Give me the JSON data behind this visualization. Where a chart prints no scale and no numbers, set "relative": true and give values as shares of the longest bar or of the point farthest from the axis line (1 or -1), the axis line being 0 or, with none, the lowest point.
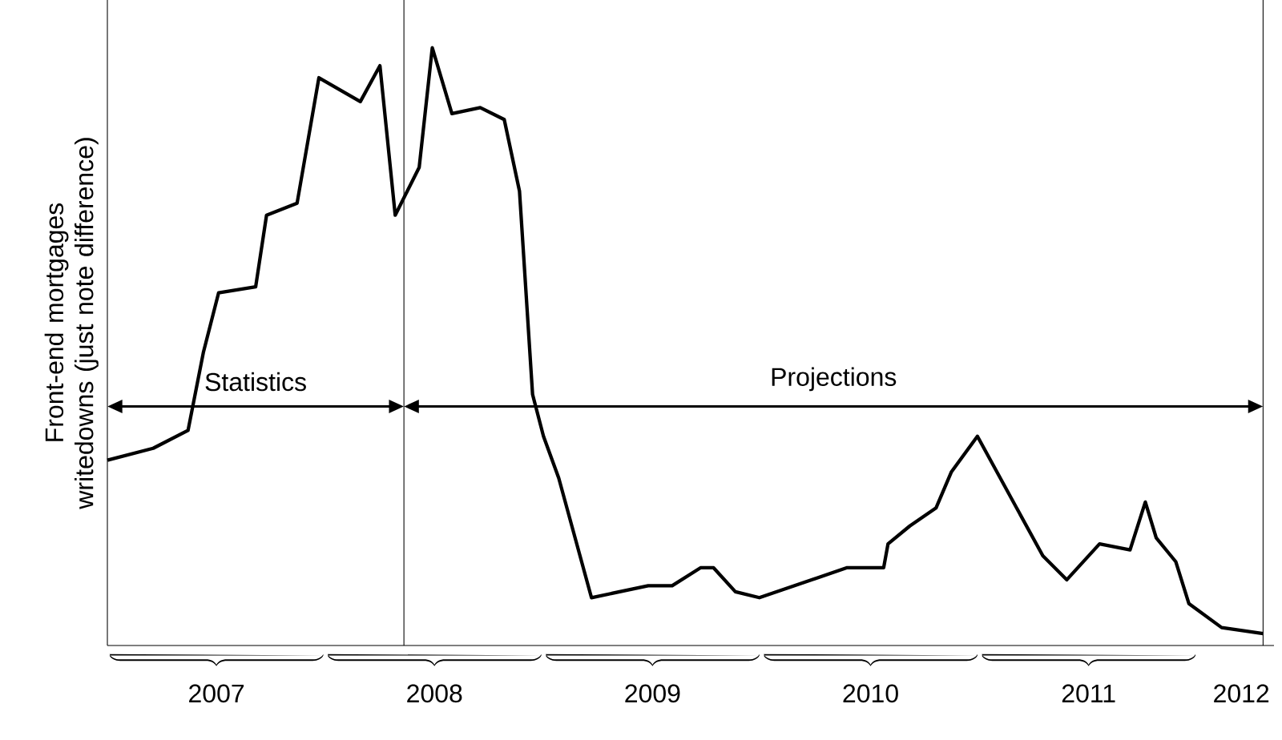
{
  "chart_data": {
    "type": "line",
    "relative": true,
    "ylabel": "Front-end mortgages writedowns (just note difference)",
    "x": [
      2007.0,
      2007.21,
      2007.37,
      2007.44,
      2007.51,
      2007.68,
      2007.73,
      2007.87,
      2007.97,
      2008.16,
      2008.25,
      2008.32,
      2008.43,
      2008.49,
      2008.58,
      2008.71,
      2008.82,
      2008.89,
      2008.95,
      2009.0,
      2009.07,
      2009.13,
      2009.22,
      2009.48,
      2009.59,
      2009.72,
      2009.78,
      2009.88,
      2009.99,
      2010.39,
      2010.56,
      2010.58,
      2010.68,
      2010.8,
      2010.87,
      2010.99,
      2011.29,
      2011.4,
      2011.55,
      2011.69,
      2011.76,
      2011.81,
      2011.9,
      2011.96,
      2012.11,
      2012.3
    ],
    "values": [
      0.31,
      0.33,
      0.36,
      0.49,
      0.59,
      0.6,
      0.72,
      0.74,
      0.95,
      0.91,
      0.97,
      0.72,
      0.8,
      1.0,
      0.89,
      0.9,
      0.88,
      0.76,
      0.42,
      0.35,
      0.28,
      0.2,
      0.08,
      0.1,
      0.1,
      0.13,
      0.13,
      0.09,
      0.08,
      0.13,
      0.13,
      0.17,
      0.2,
      0.23,
      0.29,
      0.35,
      0.15,
      0.11,
      0.17,
      0.16,
      0.24,
      0.18,
      0.14,
      0.07,
      0.03,
      0.02
    ],
    "color": "#000000",
    "xlim": [
      2007,
      2012.35
    ],
    "xticks": [
      {
        "value": 2007.5,
        "label": "2007"
      },
      {
        "value": 2008.5,
        "label": "2008"
      },
      {
        "value": 2009.5,
        "label": "2009"
      },
      {
        "value": 2010.5,
        "label": "2010"
      },
      {
        "value": 2011.5,
        "label": "2011"
      },
      {
        "value": 2012.2,
        "label": "2012"
      }
    ],
    "tick_labels": "x",
    "ref_lines": [
      {
        "axis": "x",
        "value": 2008.36
      },
      {
        "axis": "x",
        "value": 2012.3
      }
    ],
    "annotations": [
      "Statistics",
      "Projections"
    ],
    "grid": false,
    "marker": "none",
    "line_style": "solid"
  }
}
